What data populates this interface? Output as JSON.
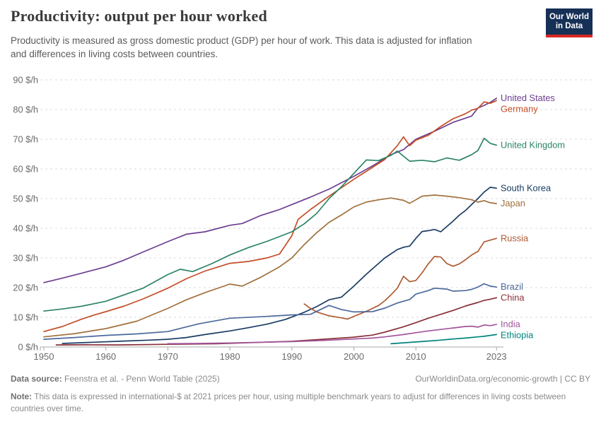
{
  "header": {
    "title": "Productivity: output per hour worked",
    "subtitle_lines": [
      "Productivity is measured as gross domestic product (GDP) per hour of work. This data is adjusted for inflation",
      "and differences in living costs between countries."
    ],
    "logo": {
      "line1": "Our World",
      "line2": "in Data",
      "bg_color": "#163056",
      "accent_color": "#d72822"
    }
  },
  "chart_data": {
    "type": "line",
    "title": "Productivity: output per hour worked",
    "unit": "international-$ in 2021 prices per hour",
    "ylim": [
      0,
      90
    ],
    "yticks": [
      0,
      10,
      20,
      30,
      40,
      50,
      60,
      70,
      80,
      90
    ],
    "ytick_format": "{v} $/h",
    "xlim": [
      1950,
      2023
    ],
    "xticks": [
      1950,
      1960,
      1970,
      1980,
      1990,
      2000,
      2010,
      2023
    ],
    "grid": "dashed horizontal",
    "legend_position": "labels at right edge of lines",
    "series": [
      {
        "name": "United States",
        "color": "#6D3E91",
        "points": [
          [
            1950,
            21.7
          ],
          [
            1953,
            23.2
          ],
          [
            1956,
            24.8
          ],
          [
            1960,
            27
          ],
          [
            1963,
            29.3
          ],
          [
            1966,
            32
          ],
          [
            1970,
            35.5
          ],
          [
            1973,
            38
          ],
          [
            1976,
            38.8
          ],
          [
            1980,
            41
          ],
          [
            1982,
            41.6
          ],
          [
            1985,
            44.3
          ],
          [
            1988,
            46.3
          ],
          [
            1990,
            48
          ],
          [
            1993,
            50.5
          ],
          [
            1996,
            53.2
          ],
          [
            2000,
            57.5
          ],
          [
            2003,
            61
          ],
          [
            2006,
            64.8
          ],
          [
            2008,
            66.5
          ],
          [
            2010,
            70
          ],
          [
            2013,
            72.7
          ],
          [
            2016,
            75.7
          ],
          [
            2018,
            77.1
          ],
          [
            2019,
            77.8
          ],
          [
            2020,
            80.5
          ],
          [
            2021,
            81.4
          ],
          [
            2022,
            82.4
          ],
          [
            2023,
            83.8
          ]
        ]
      },
      {
        "name": "Germany",
        "color": "#C44E27",
        "points": [
          [
            1950,
            5.2
          ],
          [
            1953,
            6.9
          ],
          [
            1956,
            9.3
          ],
          [
            1958,
            10.7
          ],
          [
            1960,
            11.9
          ],
          [
            1963,
            13.8
          ],
          [
            1966,
            16.2
          ],
          [
            1970,
            19.8
          ],
          [
            1973,
            23
          ],
          [
            1976,
            25.6
          ],
          [
            1980,
            28.2
          ],
          [
            1983,
            28.8
          ],
          [
            1986,
            30
          ],
          [
            1988,
            31.3
          ],
          [
            1990,
            37.5
          ],
          [
            1991,
            43
          ],
          [
            1993,
            46.3
          ],
          [
            1996,
            50.8
          ],
          [
            2000,
            56.5
          ],
          [
            2003,
            60.5
          ],
          [
            2005,
            63.2
          ],
          [
            2007,
            67.8
          ],
          [
            2008,
            70.8
          ],
          [
            2009,
            67.8
          ],
          [
            2010,
            69.7
          ],
          [
            2012,
            71.3
          ],
          [
            2014,
            74.3
          ],
          [
            2016,
            76.9
          ],
          [
            2018,
            78.6
          ],
          [
            2019,
            79.8
          ],
          [
            2020,
            80.4
          ],
          [
            2021,
            82.6
          ],
          [
            2022,
            82.1
          ],
          [
            2023,
            83
          ]
        ]
      },
      {
        "name": "United Kingdom",
        "color": "#2C8465",
        "points": [
          [
            1950,
            12.1
          ],
          [
            1953,
            12.8
          ],
          [
            1956,
            13.7
          ],
          [
            1960,
            15.4
          ],
          [
            1963,
            17.6
          ],
          [
            1966,
            19.8
          ],
          [
            1970,
            24.4
          ],
          [
            1972,
            26.2
          ],
          [
            1974,
            25.4
          ],
          [
            1977,
            28
          ],
          [
            1980,
            31
          ],
          [
            1983,
            33.5
          ],
          [
            1986,
            35.6
          ],
          [
            1990,
            38.8
          ],
          [
            1992,
            41.5
          ],
          [
            1994,
            45
          ],
          [
            1996,
            50
          ],
          [
            1998,
            54
          ],
          [
            2000,
            58.5
          ],
          [
            2002,
            63
          ],
          [
            2004,
            62.8
          ],
          [
            2006,
            64.6
          ],
          [
            2007,
            66
          ],
          [
            2009,
            62.6
          ],
          [
            2011,
            62.9
          ],
          [
            2013,
            62.4
          ],
          [
            2015,
            63.7
          ],
          [
            2017,
            62.9
          ],
          [
            2019,
            64.8
          ],
          [
            2020,
            66.2
          ],
          [
            2021,
            70.3
          ],
          [
            2022,
            68.6
          ],
          [
            2023,
            68
          ]
        ]
      },
      {
        "name": "South Korea",
        "color": "#1A3C63",
        "points": [
          [
            1953,
            1.2
          ],
          [
            1958,
            1.6
          ],
          [
            1963,
            2
          ],
          [
            1967,
            2.3
          ],
          [
            1970,
            2.6
          ],
          [
            1973,
            3.2
          ],
          [
            1976,
            4.2
          ],
          [
            1980,
            5.4
          ],
          [
            1983,
            6.5
          ],
          [
            1986,
            7.7
          ],
          [
            1989,
            9.3
          ],
          [
            1992,
            11.7
          ],
          [
            1994,
            13.6
          ],
          [
            1996,
            15.9
          ],
          [
            1998,
            16.8
          ],
          [
            2000,
            20.5
          ],
          [
            2002,
            24.5
          ],
          [
            2005,
            30
          ],
          [
            2007,
            32.8
          ],
          [
            2008,
            33.6
          ],
          [
            2009,
            34
          ],
          [
            2010,
            36.6
          ],
          [
            2011,
            38.9
          ],
          [
            2012,
            39.2
          ],
          [
            2013,
            39.6
          ],
          [
            2014,
            38.8
          ],
          [
            2015,
            40.6
          ],
          [
            2016,
            42.4
          ],
          [
            2017,
            44.4
          ],
          [
            2018,
            46
          ],
          [
            2019,
            48
          ],
          [
            2020,
            50
          ],
          [
            2021,
            52.2
          ],
          [
            2022,
            53.8
          ],
          [
            2023,
            53.5
          ]
        ]
      },
      {
        "name": "Japan",
        "color": "#A1713E",
        "points": [
          [
            1950,
            3.4
          ],
          [
            1955,
            4.5
          ],
          [
            1960,
            6.2
          ],
          [
            1965,
            8.7
          ],
          [
            1970,
            13
          ],
          [
            1973,
            15.9
          ],
          [
            1976,
            18.3
          ],
          [
            1980,
            21.2
          ],
          [
            1982,
            20.5
          ],
          [
            1985,
            23.5
          ],
          [
            1988,
            27
          ],
          [
            1990,
            30
          ],
          [
            1992,
            34.5
          ],
          [
            1994,
            38.5
          ],
          [
            1996,
            42
          ],
          [
            1998,
            44.5
          ],
          [
            2000,
            47.2
          ],
          [
            2002,
            48.8
          ],
          [
            2004,
            49.6
          ],
          [
            2006,
            50.2
          ],
          [
            2008,
            49.4
          ],
          [
            2009,
            48.4
          ],
          [
            2011,
            50.8
          ],
          [
            2013,
            51.2
          ],
          [
            2015,
            50.8
          ],
          [
            2017,
            50.3
          ],
          [
            2019,
            49.6
          ],
          [
            2020,
            48.8
          ],
          [
            2021,
            49.3
          ],
          [
            2022,
            48.6
          ],
          [
            2023,
            48.3
          ]
        ]
      },
      {
        "name": "Russia",
        "color": "#AF5B33",
        "points": [
          [
            1992,
            14.5
          ],
          [
            1993,
            13
          ],
          [
            1994,
            11.8
          ],
          [
            1996,
            10.5
          ],
          [
            1998,
            9.8
          ],
          [
            1999,
            9.4
          ],
          [
            2000,
            10.3
          ],
          [
            2002,
            12
          ],
          [
            2004,
            14
          ],
          [
            2005,
            15.6
          ],
          [
            2006,
            17.6
          ],
          [
            2007,
            19.8
          ],
          [
            2008,
            23.8
          ],
          [
            2009,
            22
          ],
          [
            2010,
            22.4
          ],
          [
            2011,
            25
          ],
          [
            2012,
            28
          ],
          [
            2013,
            30.5
          ],
          [
            2014,
            30.3
          ],
          [
            2015,
            28.1
          ],
          [
            2016,
            27.2
          ],
          [
            2017,
            28
          ],
          [
            2018,
            29.4
          ],
          [
            2019,
            31
          ],
          [
            2020,
            32.2
          ],
          [
            2021,
            35.4
          ],
          [
            2022,
            36
          ],
          [
            2023,
            36.6
          ]
        ]
      },
      {
        "name": "Brazil",
        "color": "#4C6A9C",
        "points": [
          [
            1950,
            2.6
          ],
          [
            1955,
            3.2
          ],
          [
            1960,
            3.9
          ],
          [
            1965,
            4.4
          ],
          [
            1970,
            5.2
          ],
          [
            1975,
            7.8
          ],
          [
            1980,
            9.7
          ],
          [
            1985,
            10.2
          ],
          [
            1990,
            10.8
          ],
          [
            1993,
            11
          ],
          [
            1996,
            14
          ],
          [
            1998,
            12.6
          ],
          [
            2000,
            11.8
          ],
          [
            2003,
            11.9
          ],
          [
            2005,
            13.1
          ],
          [
            2007,
            14.8
          ],
          [
            2009,
            16
          ],
          [
            2010,
            17.8
          ],
          [
            2012,
            19
          ],
          [
            2013,
            19.8
          ],
          [
            2015,
            19.5
          ],
          [
            2016,
            18.8
          ],
          [
            2018,
            19
          ],
          [
            2019,
            19.4
          ],
          [
            2020,
            20.2
          ],
          [
            2021,
            21.3
          ],
          [
            2022,
            20.5
          ],
          [
            2023,
            20.2
          ]
        ]
      },
      {
        "name": "China",
        "color": "#883039",
        "points": [
          [
            1952,
            0.7
          ],
          [
            1957,
            0.75
          ],
          [
            1962,
            0.7
          ],
          [
            1970,
            0.9
          ],
          [
            1978,
            1.1
          ],
          [
            1984,
            1.5
          ],
          [
            1990,
            1.9
          ],
          [
            1995,
            2.6
          ],
          [
            2000,
            3.3
          ],
          [
            2003,
            4
          ],
          [
            2005,
            5
          ],
          [
            2008,
            6.8
          ],
          [
            2010,
            8.2
          ],
          [
            2012,
            9.7
          ],
          [
            2014,
            11
          ],
          [
            2016,
            12.3
          ],
          [
            2018,
            13.8
          ],
          [
            2020,
            15
          ],
          [
            2021,
            15.7
          ],
          [
            2022,
            16.1
          ],
          [
            2023,
            16.6
          ]
        ]
      },
      {
        "name": "India",
        "color": "#A2559C",
        "points": [
          [
            1970,
            1.1
          ],
          [
            1975,
            1.2
          ],
          [
            1980,
            1.35
          ],
          [
            1985,
            1.6
          ],
          [
            1990,
            1.8
          ],
          [
            1995,
            2.2
          ],
          [
            2000,
            2.7
          ],
          [
            2003,
            3
          ],
          [
            2005,
            3.4
          ],
          [
            2008,
            4.2
          ],
          [
            2010,
            4.8
          ],
          [
            2012,
            5.4
          ],
          [
            2014,
            5.9
          ],
          [
            2016,
            6.4
          ],
          [
            2018,
            6.9
          ],
          [
            2019,
            7
          ],
          [
            2020,
            6.7
          ],
          [
            2021,
            7.4
          ],
          [
            2022,
            7.2
          ],
          [
            2023,
            7.6
          ]
        ]
      },
      {
        "name": "Ethiopia",
        "color": "#00847E",
        "points": [
          [
            2006,
            1.1
          ],
          [
            2008,
            1.4
          ],
          [
            2010,
            1.7
          ],
          [
            2012,
            2
          ],
          [
            2014,
            2.3
          ],
          [
            2016,
            2.7
          ],
          [
            2018,
            3
          ],
          [
            2020,
            3.4
          ],
          [
            2021,
            3.6
          ],
          [
            2022,
            3.9
          ],
          [
            2023,
            4.2
          ]
        ]
      }
    ]
  },
  "footer": {
    "datasource_label": "Data source:",
    "datasource_text": "Feenstra et al. - Penn World Table (2025)",
    "right_text": "OurWorldinData.org/economic-growth | CC BY",
    "note_label": "Note:",
    "note_text": "This data is expressed in international-$ at 2021 prices per hour, using multiple benchmark years to adjust for differences in living costs between countries over time."
  }
}
